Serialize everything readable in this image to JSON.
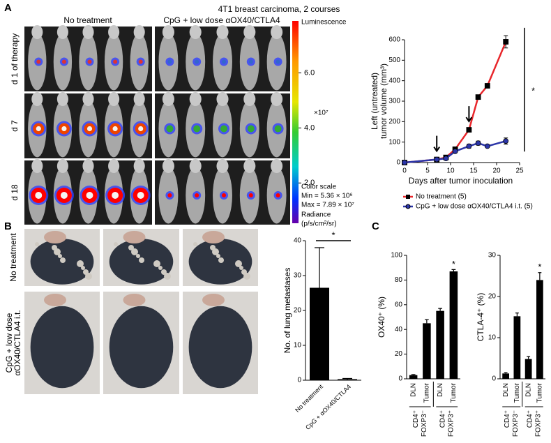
{
  "panel_labels": [
    "A",
    "B",
    "C"
  ],
  "imaging": {
    "title": "4T1 breast carcinoma, 2 courses",
    "groups": [
      "No treatment",
      "CpG + low dose αOX40/CTLA4"
    ],
    "days": [
      "d 1 of therapy",
      "d 7",
      "d 18"
    ],
    "colorbar": {
      "title": "Luminescence",
      "multiplier": "×10⁷",
      "clim": [
        0.536,
        7.89
      ],
      "ticks": [
        {
          "value": 2,
          "label": "2.0"
        },
        {
          "value": 4,
          "label": "4.0"
        },
        {
          "value": 6,
          "label": "6.0"
        }
      ],
      "scale_title": "Color scale",
      "min_label": "Min = 5.36 × 10⁶",
      "max_label": "Max = 7.89 × 10⁷",
      "unit_lines": [
        "Radiance",
        "(p/s/cm²/sr)"
      ]
    }
  },
  "lungs": {
    "rows": [
      [
        "No treatment"
      ],
      [
        "CpG + low dose",
        "αOX40/CTLA4 i.t."
      ]
    ]
  },
  "chart_data": [
    {
      "type": "line",
      "y_label": [
        "Left (untreated)",
        "tumor volume (mm³)"
      ],
      "x_label": "Days after tumor inoculation",
      "xlim": [
        0,
        25
      ],
      "xticks": [
        0,
        5,
        10,
        15,
        20,
        25
      ],
      "ylim": [
        0,
        600
      ],
      "yticks": [
        0,
        100,
        200,
        300,
        400,
        500,
        600
      ],
      "x": [
        0,
        7,
        9,
        11,
        14,
        16,
        18,
        22
      ],
      "treatment_days": [
        7,
        14
      ],
      "significance": "*",
      "series": [
        {
          "name": "No treatment (5)",
          "color": "#e8262b",
          "marker": "square",
          "values": [
            0,
            15,
            25,
            65,
            160,
            320,
            375,
            590
          ],
          "errors": [
            0,
            3,
            5,
            8,
            10,
            10,
            5,
            30
          ]
        },
        {
          "name": "CpG + low dose αOX40/CTLA4 i.t. (5)",
          "color": "#2b35a8",
          "marker": "circle",
          "values": [
            0,
            15,
            20,
            55,
            80,
            95,
            80,
            105
          ],
          "errors": [
            0,
            3,
            5,
            8,
            10,
            10,
            5,
            15
          ]
        }
      ]
    },
    {
      "type": "bar",
      "y_label": "No. of lung metastases",
      "categories": [
        "No treatment",
        "CpG + αOX40/CTLA4"
      ],
      "values": [
        26.5,
        0.3
      ],
      "errors": [
        11.5,
        0.2
      ],
      "color": "#000000",
      "ylim": [
        0,
        40
      ],
      "yticks": [
        0,
        10,
        20,
        30,
        40
      ],
      "significance": "*"
    },
    {
      "type": "bar",
      "y_label": "OX40⁺ (%)",
      "categories": [
        "DLN",
        "Tumor",
        "DLN",
        "Tumor"
      ],
      "groups": [
        [
          "CD4⁺",
          "FOXP3⁻"
        ],
        [
          "CD4⁺",
          "FOXP3⁺"
        ]
      ],
      "values": [
        3,
        45,
        55,
        87
      ],
      "errors": [
        0.5,
        3,
        2,
        1.5
      ],
      "color": "#000000",
      "ylim": [
        0,
        100
      ],
      "yticks": [
        0,
        20,
        40,
        60,
        80,
        100
      ],
      "significance": "*"
    },
    {
      "type": "bar",
      "y_label": "CTLA-4⁺ (%)",
      "categories": [
        "DLN",
        "Tumor",
        "DLN",
        "Tumor"
      ],
      "groups": [
        [
          "CD4⁺",
          "FOXP3⁻"
        ],
        [
          "CD4⁺",
          "FOXP3⁺"
        ]
      ],
      "values": [
        1.3,
        15.2,
        4.8,
        24
      ],
      "errors": [
        0.2,
        0.8,
        0.6,
        1.8
      ],
      "color": "#000000",
      "ylim": [
        0,
        30
      ],
      "yticks": [
        0,
        10,
        20,
        30
      ],
      "significance": "*"
    }
  ]
}
